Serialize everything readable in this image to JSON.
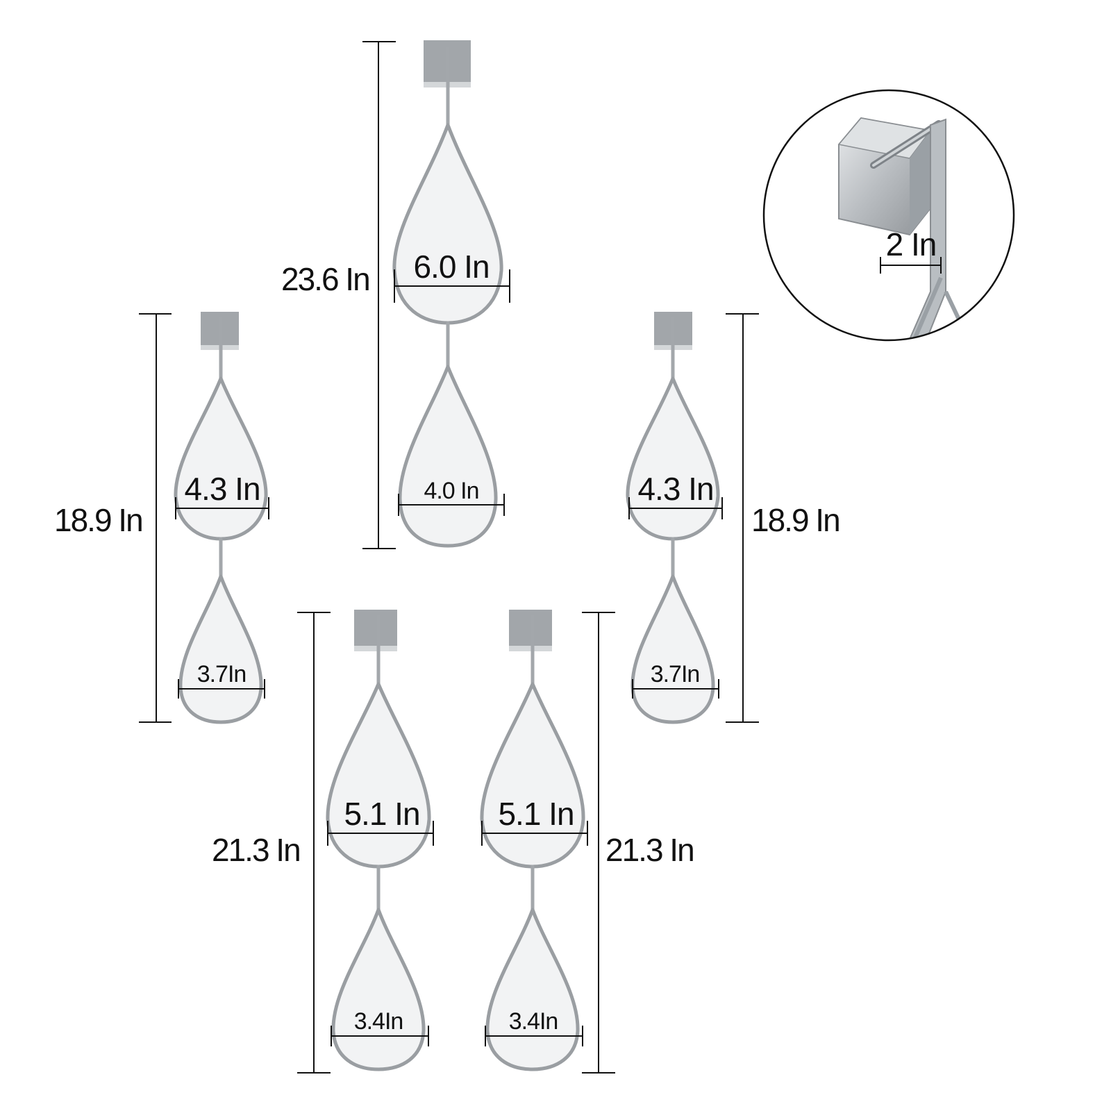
{
  "hangers": [
    {
      "name": "center-top",
      "height_label": "23.6 In",
      "top_width_label": "6.0 In",
      "bottom_width_label": "4.0 In"
    },
    {
      "name": "left-middle",
      "height_label": "18.9 In",
      "top_width_label": "4.3 In",
      "bottom_width_label": "3.7In"
    },
    {
      "name": "right-middle",
      "height_label": "18.9 In",
      "top_width_label": "4.3 In",
      "bottom_width_label": "3.7In"
    },
    {
      "name": "bottom-left",
      "height_label": "21.3 In",
      "top_width_label": "5.1 In",
      "bottom_width_label": "3.4In"
    },
    {
      "name": "bottom-right",
      "height_label": "21.3 In",
      "top_width_label": "5.1 In",
      "bottom_width_label": "3.4In"
    }
  ],
  "detail": {
    "hook_width_label": "2 In"
  }
}
